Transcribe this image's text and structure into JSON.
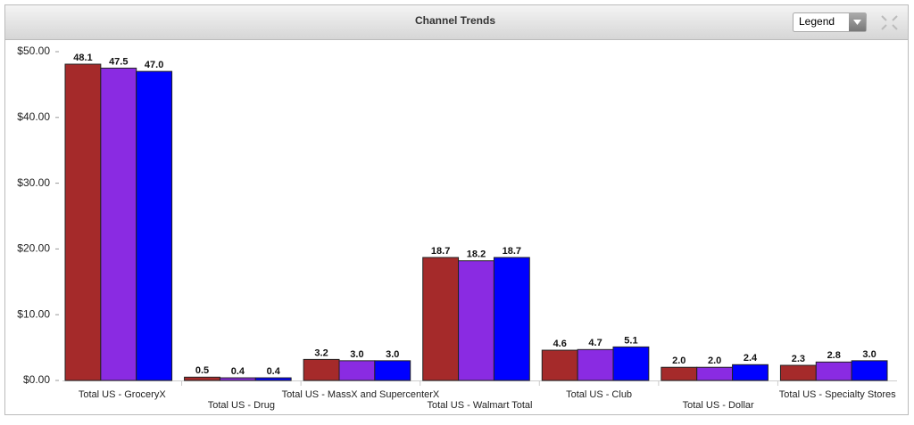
{
  "toolbar": {
    "legend_select": "Legend"
  },
  "chart_data": {
    "type": "bar",
    "title": "Channel Trends",
    "categories": [
      "Total US - GroceryX",
      "Total US - Drug",
      "Total US - MassX and SupercenterX",
      "Total US - Walmart Total",
      "Total US - Club",
      "Total US - Dollar",
      "Total US - Specialty Stores"
    ],
    "series": [
      {
        "color": "#a52a2a",
        "values": [
          48.1,
          0.5,
          3.2,
          18.7,
          4.6,
          2.0,
          2.3
        ],
        "value_labels": [
          "48.1",
          "0.5",
          "3.2",
          "18.7",
          "4.6",
          "2.0",
          "2.3"
        ]
      },
      {
        "color": "#8a2be2",
        "values": [
          47.5,
          0.4,
          3.0,
          18.2,
          4.7,
          2.0,
          2.8
        ],
        "value_labels": [
          "47.5",
          "0.4",
          "3.0",
          "18.2",
          "4.7",
          "2.0",
          "2.8"
        ]
      },
      {
        "color": "#0000ff",
        "values": [
          47.0,
          0.4,
          3.0,
          18.7,
          5.1,
          2.4,
          3.0
        ],
        "value_labels": [
          "47.0",
          "0.4",
          "3.0",
          "18.7",
          "5.1",
          "2.4",
          "3.0"
        ]
      }
    ],
    "ylim": [
      0,
      50
    ],
    "yticks": [
      {
        "value": 0,
        "label": "$0.00"
      },
      {
        "value": 10,
        "label": "$10.00"
      },
      {
        "value": 20,
        "label": "$20.00"
      },
      {
        "value": 30,
        "label": "$30.00"
      },
      {
        "value": 40,
        "label": "$40.00"
      },
      {
        "value": 50,
        "label": "$50.00"
      }
    ]
  }
}
